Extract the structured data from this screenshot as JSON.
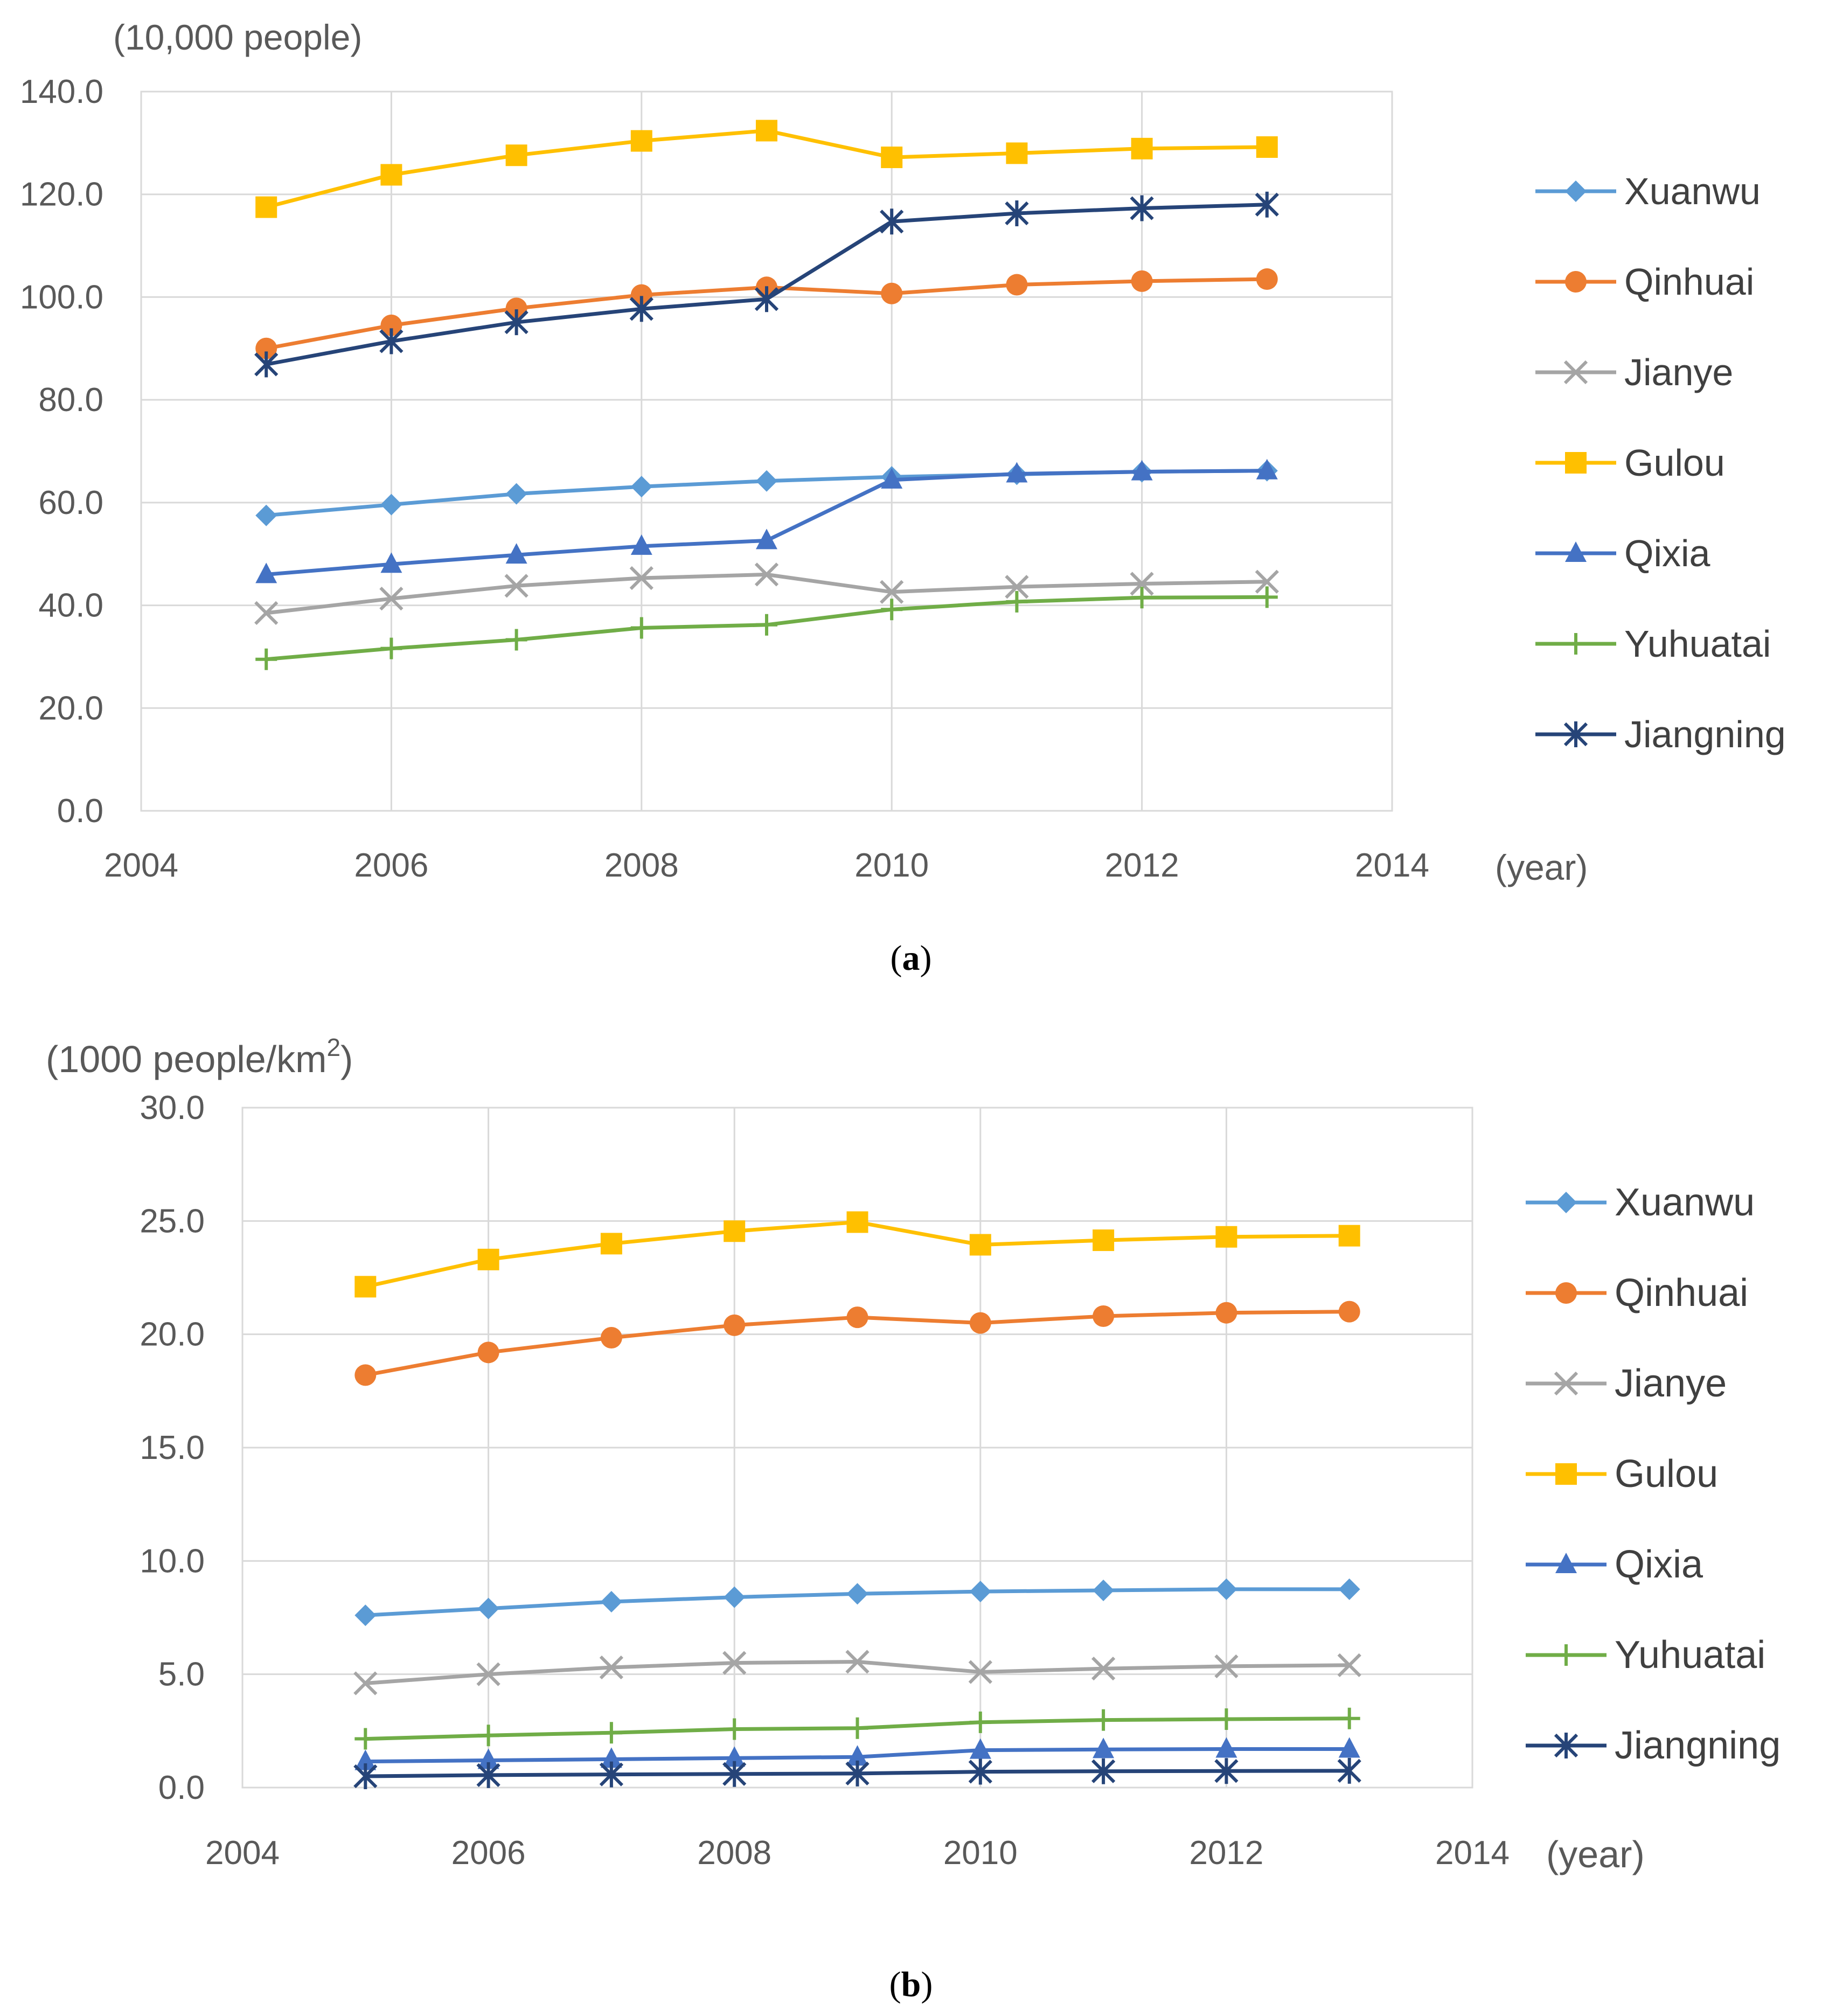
{
  "chart_data": [
    {
      "type": "line",
      "panel_label": "a",
      "unit_label": "(10,000 people)",
      "x_unit_label": "(year)",
      "x": [
        2005,
        2006,
        2007,
        2008,
        2009,
        2010,
        2011,
        2012,
        2013
      ],
      "xlim": [
        2004,
        2014
      ],
      "x_ticks": [
        2004,
        2006,
        2008,
        2010,
        2012,
        2014
      ],
      "ylim": [
        0,
        140
      ],
      "y_ticks": [
        0,
        20,
        40,
        60,
        80,
        100,
        120,
        140
      ],
      "y_tick_labels": [
        "0.0",
        "20.0",
        "40.0",
        "60.0",
        "80.0",
        "100.0",
        "120.0",
        "140.0"
      ],
      "grid": true,
      "legend_position": "right",
      "series": [
        {
          "name": "Xuanwu",
          "color": "#5B9BD5",
          "marker": "diamond",
          "values": [
            57.5,
            59.6,
            61.7,
            63.1,
            64.2,
            65.0,
            65.5,
            66.0,
            66.2
          ]
        },
        {
          "name": "Qinhuai",
          "color": "#ED7D31",
          "marker": "circle",
          "values": [
            90.0,
            94.5,
            97.8,
            100.4,
            101.9,
            100.7,
            102.4,
            103.1,
            103.5
          ]
        },
        {
          "name": "Jianye",
          "color": "#A5A5A5",
          "marker": "x",
          "values": [
            38.5,
            41.3,
            43.8,
            45.3,
            46.0,
            42.6,
            43.6,
            44.2,
            44.6
          ]
        },
        {
          "name": "Gulou",
          "color": "#FFC000",
          "marker": "square",
          "values": [
            117.5,
            123.8,
            127.6,
            130.4,
            132.4,
            127.2,
            128.0,
            128.9,
            129.2
          ]
        },
        {
          "name": "Qixia",
          "color": "#4472C4",
          "marker": "triangle",
          "values": [
            46.0,
            48.0,
            49.8,
            51.5,
            52.6,
            64.4,
            65.6,
            66.0,
            66.2
          ]
        },
        {
          "name": "Yuhuatai",
          "color": "#70AD47",
          "marker": "plus",
          "values": [
            29.5,
            31.6,
            33.3,
            35.6,
            36.2,
            39.2,
            40.7,
            41.5,
            41.6
          ]
        },
        {
          "name": "Jiangning",
          "color": "#264478",
          "marker": "star",
          "values": [
            86.9,
            91.4,
            95.1,
            97.7,
            99.6,
            114.7,
            116.3,
            117.3,
            118.0
          ]
        }
      ]
    },
    {
      "type": "line",
      "panel_label": "b",
      "unit_label": "(1000 people/km",
      "unit_superscript": "2",
      "unit_label_close": ")",
      "x_unit_label": "(year)",
      "x": [
        2005,
        2006,
        2007,
        2008,
        2009,
        2010,
        2011,
        2012,
        2013
      ],
      "xlim": [
        2004,
        2014
      ],
      "x_ticks": [
        2004,
        2006,
        2008,
        2010,
        2012,
        2014
      ],
      "ylim": [
        0,
        30
      ],
      "y_ticks": [
        0,
        5,
        10,
        15,
        20,
        25,
        30
      ],
      "y_tick_labels": [
        "0.0",
        "5.0",
        "10.0",
        "15.0",
        "20.0",
        "25.0",
        "30.0"
      ],
      "grid": true,
      "legend_position": "right",
      "series": [
        {
          "name": "Xuanwu",
          "color": "#5B9BD5",
          "marker": "diamond",
          "values": [
            7.6,
            7.9,
            8.2,
            8.4,
            8.55,
            8.65,
            8.7,
            8.75,
            8.75
          ]
        },
        {
          "name": "Qinhuai",
          "color": "#ED7D31",
          "marker": "circle",
          "values": [
            18.2,
            19.2,
            19.85,
            20.4,
            20.75,
            20.5,
            20.8,
            20.95,
            21.0
          ]
        },
        {
          "name": "Jianye",
          "color": "#A5A5A5",
          "marker": "x",
          "values": [
            4.6,
            5.0,
            5.3,
            5.5,
            5.55,
            5.1,
            5.25,
            5.35,
            5.4
          ]
        },
        {
          "name": "Gulou",
          "color": "#FFC000",
          "marker": "square",
          "values": [
            22.1,
            23.3,
            24.0,
            24.55,
            24.95,
            23.95,
            24.15,
            24.3,
            24.35
          ]
        },
        {
          "name": "Qixia",
          "color": "#4472C4",
          "marker": "triangle",
          "values": [
            1.15,
            1.2,
            1.25,
            1.3,
            1.35,
            1.65,
            1.68,
            1.7,
            1.7
          ]
        },
        {
          "name": "Yuhuatai",
          "color": "#70AD47",
          "marker": "plus",
          "values": [
            2.15,
            2.3,
            2.42,
            2.58,
            2.62,
            2.88,
            2.98,
            3.02,
            3.05
          ]
        },
        {
          "name": "Jiangning",
          "color": "#264478",
          "marker": "star",
          "values": [
            0.5,
            0.55,
            0.58,
            0.6,
            0.62,
            0.7,
            0.72,
            0.73,
            0.74
          ]
        }
      ]
    }
  ]
}
